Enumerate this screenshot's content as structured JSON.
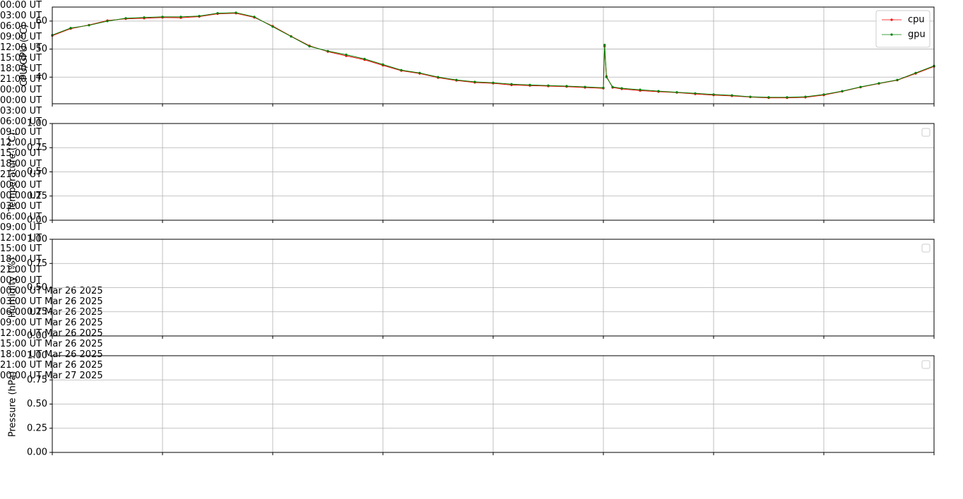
{
  "chart_data": [
    {
      "type": "line",
      "ylabel": "CPU/GPU (°C)",
      "x": [
        "2025-03-26T00:00",
        "2025-03-26T00:30",
        "2025-03-26T01:00",
        "2025-03-26T01:30",
        "2025-03-26T02:00",
        "2025-03-26T02:30",
        "2025-03-26T03:00",
        "2025-03-26T03:30",
        "2025-03-26T04:00",
        "2025-03-26T04:30",
        "2025-03-26T05:00",
        "2025-03-26T05:30",
        "2025-03-26T06:00",
        "2025-03-26T06:30",
        "2025-03-26T07:00",
        "2025-03-26T07:30",
        "2025-03-26T08:00",
        "2025-03-26T08:30",
        "2025-03-26T09:00",
        "2025-03-26T09:30",
        "2025-03-26T10:00",
        "2025-03-26T10:30",
        "2025-03-26T11:00",
        "2025-03-26T11:30",
        "2025-03-26T12:00",
        "2025-03-26T12:30",
        "2025-03-26T13:00",
        "2025-03-26T13:30",
        "2025-03-26T14:00",
        "2025-03-26T14:30",
        "2025-03-26T15:00",
        "2025-03-26T15:02",
        "2025-03-26T15:05",
        "2025-03-26T15:15",
        "2025-03-26T15:30",
        "2025-03-26T16:00",
        "2025-03-26T16:30",
        "2025-03-26T17:00",
        "2025-03-26T17:30",
        "2025-03-26T18:00",
        "2025-03-26T18:30",
        "2025-03-26T19:00",
        "2025-03-26T19:30",
        "2025-03-26T20:00",
        "2025-03-26T20:30",
        "2025-03-26T21:00",
        "2025-03-26T21:30",
        "2025-03-26T22:00",
        "2025-03-26T22:30",
        "2025-03-26T23:00",
        "2025-03-26T23:30",
        "2025-03-27T00:00"
      ],
      "series": [
        {
          "name": "cpu",
          "color": "#ff0000",
          "values": [
            54.8,
            57.3,
            58.6,
            60.2,
            60.8,
            61,
            61.3,
            61.2,
            61.6,
            62.6,
            62.8,
            61.3,
            58.2,
            54.6,
            51.2,
            49.1,
            47.6,
            46.2,
            44.2,
            42.3,
            41.3,
            39.8,
            38.8,
            38.1,
            37.8,
            37.2,
            37,
            36.8,
            36.6,
            36.3,
            36,
            51,
            40.3,
            36.3,
            35.8,
            35.2,
            34.8,
            34.5,
            34,
            33.6,
            33.3,
            32.9,
            32.6,
            32.6,
            32.8,
            33.6,
            34.9,
            36.4,
            37.7,
            38.9,
            41.3,
            43.8
          ]
        },
        {
          "name": "gpu",
          "color": "#008000",
          "values": [
            55,
            57.5,
            58.5,
            60,
            61,
            61.3,
            61.5,
            61.5,
            61.8,
            62.8,
            63,
            61.5,
            58,
            54.5,
            51,
            49.3,
            48,
            46.5,
            44.5,
            42.5,
            41.5,
            40,
            39,
            38.3,
            38,
            37.5,
            37.2,
            37,
            36.8,
            36.5,
            36.2,
            51.5,
            40,
            36.5,
            36,
            35.5,
            35,
            34.6,
            34.2,
            33.8,
            33.5,
            33,
            32.8,
            32.8,
            33,
            33.8,
            35,
            36.5,
            37.8,
            39,
            41.5,
            44
          ]
        }
      ],
      "xlim": [
        "2025-03-26T00:00",
        "2025-03-27T00:00"
      ],
      "xticks": [
        {
          "value": "2025-03-26T00:00",
          "label": "00:00 UT"
        },
        {
          "value": "2025-03-26T03:00",
          "label": "03:00 UT"
        },
        {
          "value": "2025-03-26T06:00",
          "label": "06:00 UT"
        },
        {
          "value": "2025-03-26T09:00",
          "label": "09:00 UT"
        },
        {
          "value": "2025-03-26T12:00",
          "label": "12:00 UT"
        },
        {
          "value": "2025-03-26T15:00",
          "label": "15:00 UT"
        },
        {
          "value": "2025-03-26T18:00",
          "label": "18:00 UT"
        },
        {
          "value": "2025-03-26T21:00",
          "label": "21:00 UT"
        },
        {
          "value": "2025-03-27T00:00",
          "label": "00:00 UT"
        }
      ],
      "ylim": [
        30.5,
        65
      ],
      "yticks": [
        40,
        50,
        60
      ],
      "grid": true,
      "legend": "upper right"
    },
    {
      "type": "line",
      "ylabel": "Temperature (°C)",
      "series": [],
      "xlim": [
        "2025-03-26T00:00",
        "2025-03-27T00:00"
      ],
      "xticks": [
        {
          "value": "2025-03-26T00:00",
          "label": "00:00 UT"
        },
        {
          "value": "2025-03-26T03:00",
          "label": "03:00 UT"
        },
        {
          "value": "2025-03-26T06:00",
          "label": "06:00 UT"
        },
        {
          "value": "2025-03-26T09:00",
          "label": "09:00 UT"
        },
        {
          "value": "2025-03-26T12:00",
          "label": "12:00 UT"
        },
        {
          "value": "2025-03-26T15:00",
          "label": "15:00 UT"
        },
        {
          "value": "2025-03-26T18:00",
          "label": "18:00 UT"
        },
        {
          "value": "2025-03-26T21:00",
          "label": "21:00 UT"
        },
        {
          "value": "2025-03-27T00:00",
          "label": "00:00 UT"
        }
      ],
      "ylim": [
        0,
        1
      ],
      "yticks": [
        {
          "value": 0,
          "label": "0.00"
        },
        {
          "value": 0.25,
          "label": "0.25"
        },
        {
          "value": 0.5,
          "label": "0.50"
        },
        {
          "value": 0.75,
          "label": "0.75"
        },
        {
          "value": 1,
          "label": "1.00"
        }
      ],
      "grid": true,
      "legend": "upper right"
    },
    {
      "type": "line",
      "ylabel": "Humidity (%)",
      "series": [],
      "xlim": [
        "2025-03-26T00:00",
        "2025-03-27T00:00"
      ],
      "xticks": [
        {
          "value": "2025-03-26T00:00",
          "label": "00:00 UT"
        },
        {
          "value": "2025-03-26T03:00",
          "label": "03:00 UT"
        },
        {
          "value": "2025-03-26T06:00",
          "label": "06:00 UT"
        },
        {
          "value": "2025-03-26T09:00",
          "label": "09:00 UT"
        },
        {
          "value": "2025-03-26T12:00",
          "label": "12:00 UT"
        },
        {
          "value": "2025-03-26T15:00",
          "label": "15:00 UT"
        },
        {
          "value": "2025-03-26T18:00",
          "label": "18:00 UT"
        },
        {
          "value": "2025-03-26T21:00",
          "label": "21:00 UT"
        },
        {
          "value": "2025-03-27T00:00",
          "label": "00:00 UT"
        }
      ],
      "ylim": [
        0,
        1
      ],
      "yticks": [
        {
          "value": 0,
          "label": "0.00"
        },
        {
          "value": 0.25,
          "label": "0.25"
        },
        {
          "value": 0.5,
          "label": "0.50"
        },
        {
          "value": 0.75,
          "label": "0.75"
        },
        {
          "value": 1,
          "label": "1.00"
        }
      ],
      "grid": true,
      "legend": "upper right"
    },
    {
      "type": "line",
      "ylabel": "Pressure (hPa)",
      "series": [],
      "xlim": [
        "2025-03-26T00:00",
        "2025-03-27T00:00"
      ],
      "xticks": [
        {
          "value": "2025-03-26T00:00",
          "label": "00:00 UT\nMar 26\n2025"
        },
        {
          "value": "2025-03-26T03:00",
          "label": "03:00 UT\nMar 26\n2025"
        },
        {
          "value": "2025-03-26T06:00",
          "label": "06:00 UT\nMar 26\n2025"
        },
        {
          "value": "2025-03-26T09:00",
          "label": "09:00 UT\nMar 26\n2025"
        },
        {
          "value": "2025-03-26T12:00",
          "label": "12:00 UT\nMar 26\n2025"
        },
        {
          "value": "2025-03-26T15:00",
          "label": "15:00 UT\nMar 26\n2025"
        },
        {
          "value": "2025-03-26T18:00",
          "label": "18:00 UT\nMar 26\n2025"
        },
        {
          "value": "2025-03-26T21:00",
          "label": "21:00 UT\nMar 26\n2025"
        },
        {
          "value": "2025-03-27T00:00",
          "label": "00:00 UT\nMar 27\n2025"
        }
      ],
      "ylim": [
        0,
        1
      ],
      "yticks": [
        {
          "value": 0,
          "label": "0.00"
        },
        {
          "value": 0.25,
          "label": "0.25"
        },
        {
          "value": 0.5,
          "label": "0.50"
        },
        {
          "value": 0.75,
          "label": "0.75"
        },
        {
          "value": 1,
          "label": "1.00"
        }
      ],
      "grid": true,
      "legend": "upper right"
    }
  ]
}
